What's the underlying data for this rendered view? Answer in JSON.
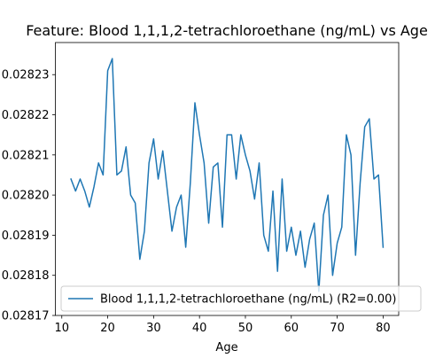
{
  "chart_data": {
    "type": "line",
    "title": "Feature: Blood 1,1,1,2-tetrachloroethane (ng/mL) vs Age",
    "xlabel": "Age",
    "ylabel": "",
    "xlim": [
      8.6,
      83.4
    ],
    "ylim": [
      0.02817,
      0.028238
    ],
    "xticks": [
      10,
      20,
      30,
      40,
      50,
      60,
      70,
      80
    ],
    "yticks": [
      0.02817,
      0.02818,
      0.02819,
      0.0282,
      0.02821,
      0.02822,
      0.02823
    ],
    "ytick_labels": [
      "0.02817",
      "0.02818",
      "0.02819",
      "0.02820",
      "0.02821",
      "0.02822",
      "0.02823"
    ],
    "grid": false,
    "legend_position": "lower-left",
    "series": [
      {
        "name": "Blood 1,1,1,2-tetrachloroethane (ng/mL) (R2=0.00)",
        "color": "#1f77b4",
        "x": [
          12,
          13,
          14,
          15,
          16,
          17,
          18,
          19,
          20,
          21,
          22,
          23,
          24,
          25,
          26,
          27,
          28,
          29,
          30,
          31,
          32,
          33,
          34,
          35,
          36,
          37,
          38,
          39,
          40,
          41,
          42,
          43,
          44,
          45,
          46,
          47,
          48,
          49,
          50,
          51,
          52,
          53,
          54,
          55,
          56,
          57,
          58,
          59,
          60,
          61,
          62,
          63,
          64,
          65,
          66,
          67,
          68,
          69,
          70,
          71,
          72,
          73,
          74,
          75,
          76,
          77,
          78,
          79,
          80
        ],
        "y": [
          0.028204,
          0.028201,
          0.028204,
          0.028201,
          0.028197,
          0.028202,
          0.028208,
          0.028205,
          0.028231,
          0.028234,
          0.028205,
          0.028206,
          0.028212,
          0.0282,
          0.028198,
          0.028184,
          0.028191,
          0.028208,
          0.028214,
          0.028204,
          0.028211,
          0.028201,
          0.028191,
          0.028197,
          0.0282,
          0.028187,
          0.028203,
          0.028223,
          0.028215,
          0.028208,
          0.028193,
          0.028207,
          0.028208,
          0.028192,
          0.028215,
          0.028215,
          0.028204,
          0.028215,
          0.02821,
          0.028206,
          0.028199,
          0.028208,
          0.02819,
          0.028186,
          0.028201,
          0.028181,
          0.028204,
          0.028186,
          0.028192,
          0.028185,
          0.028191,
          0.028182,
          0.028189,
          0.028193,
          0.028176,
          0.028195,
          0.0282,
          0.02818,
          0.028188,
          0.028192,
          0.028215,
          0.02821,
          0.028185,
          0.028203,
          0.028217,
          0.028219,
          0.028204,
          0.028205,
          0.028187
        ]
      }
    ]
  }
}
